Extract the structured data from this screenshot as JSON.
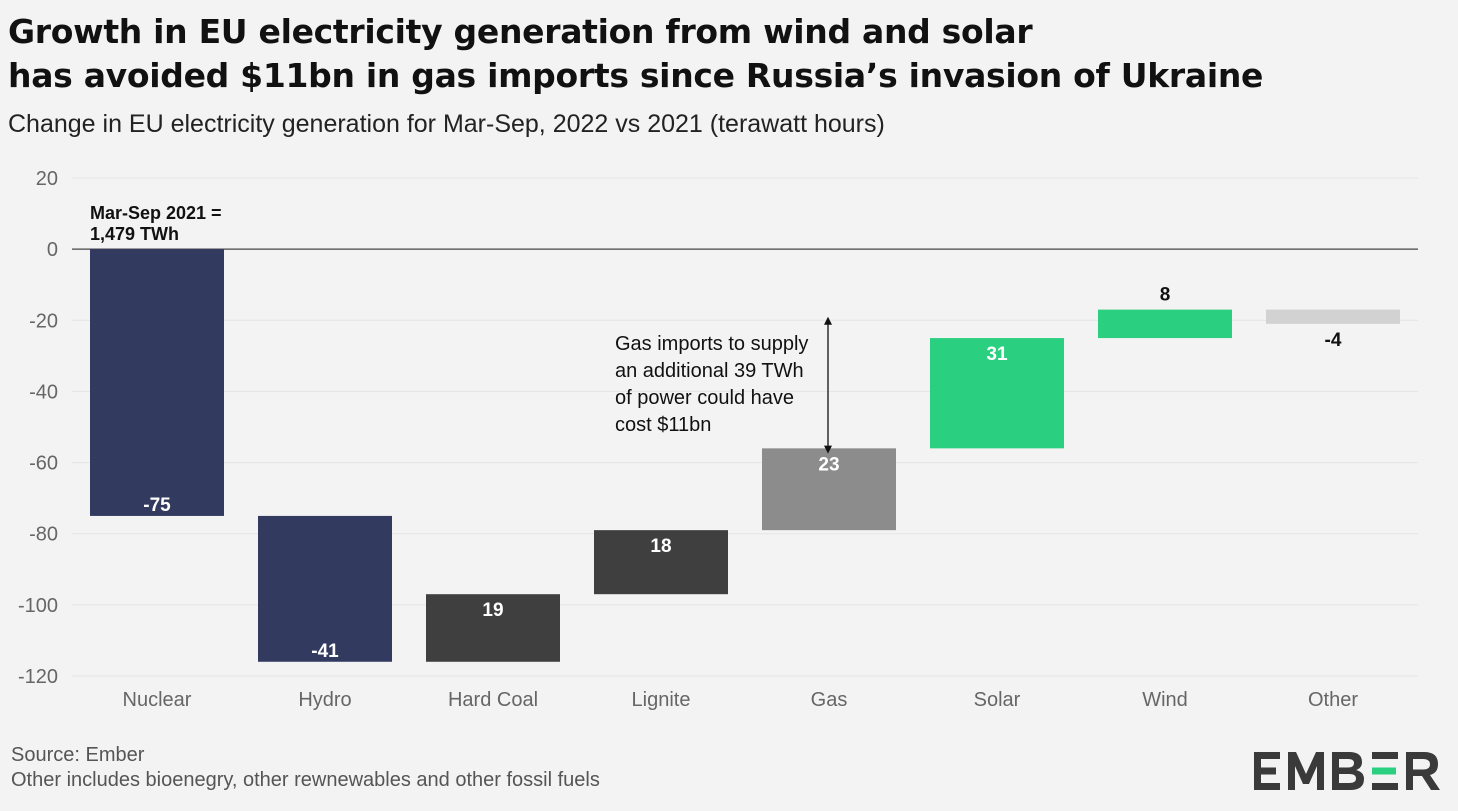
{
  "header": {
    "title_line1": "Growth in EU electricity generation from wind and solar",
    "title_line2": "has avoided $11bn in gas imports since Russia’s invasion of Ukraine",
    "subtitle": "Change in EU electricity generation for Mar-Sep, 2022 vs 2021 (terawatt hours)"
  },
  "chart_data": {
    "type": "bar",
    "subtype": "waterfall",
    "categories": [
      "Nuclear",
      "Hydro",
      "Hard Coal",
      "Lignite",
      "Gas",
      "Solar",
      "Wind",
      "Other"
    ],
    "values": [
      -75,
      -41,
      19,
      18,
      23,
      31,
      8,
      -4
    ],
    "value_labels": [
      "-75",
      "-41",
      "19",
      "18",
      "23",
      "31",
      "8",
      "-4"
    ],
    "starts": [
      0,
      -75,
      -116,
      -97,
      -79,
      -56,
      -25,
      -17
    ],
    "colors": [
      "#323a60",
      "#323a60",
      "#3f3f3f",
      "#3f3f3f",
      "#8c8c8c",
      "#2ad07f",
      "#2ad07f",
      "#d2d2d2"
    ],
    "label_colors": [
      "#ffffff",
      "#ffffff",
      "#ffffff",
      "#ffffff",
      "#ffffff",
      "#ffffff",
      "#111111",
      "#111111"
    ],
    "label_position": [
      "inside-bottom",
      "inside-bottom",
      "inside-top",
      "inside-top",
      "inside-top",
      "inside-top",
      "above",
      "below"
    ],
    "ylim": [
      -120,
      20
    ],
    "yticks": [
      20,
      0,
      -20,
      -40,
      -60,
      -80,
      -100,
      -120
    ],
    "grid": true,
    "baseline_annotation": [
      "Mar-Sep 2021 =",
      "1,479 TWh"
    ],
    "annotation": {
      "lines": [
        "Gas imports to supply",
        "an additional 39 TWh",
        "of power could have",
        "cost $11bn"
      ],
      "arrow_from": -19,
      "arrow_to": -57.5
    }
  },
  "footer": {
    "source": "Source: Ember",
    "note": "Other includes bioenegry, other rewnewables and other fossil fuels"
  },
  "brand": {
    "name": "EMBER",
    "accent_color": "#2ad07f"
  }
}
